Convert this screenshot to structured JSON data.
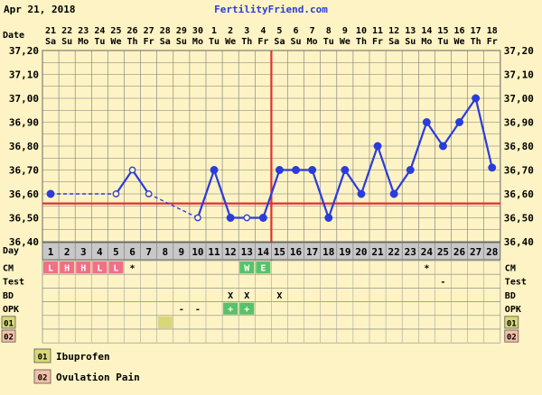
{
  "header": {
    "date": "Apr 21, 2018",
    "site": "FertilityFriend.com"
  },
  "labels": {
    "date_row": "Date",
    "day_row": "Day"
  },
  "chart_data": {
    "type": "line",
    "title": "",
    "y_unit": "temperature",
    "ylim": [
      36.4,
      37.2
    ],
    "ytick_step": 0.1,
    "y_ticks": [
      "36,40",
      "36,50",
      "36,60",
      "36,70",
      "36,80",
      "36,90",
      "37,00",
      "37,10",
      "37,20"
    ],
    "grid": true,
    "dates": [
      "21",
      "22",
      "23",
      "24",
      "25",
      "26",
      "27",
      "28",
      "29",
      "30",
      "1",
      "2",
      "3",
      "4",
      "5",
      "6",
      "7",
      "8",
      "9",
      "10",
      "11",
      "12",
      "13",
      "14",
      "15",
      "16",
      "17",
      "18"
    ],
    "weekdays": [
      "Sa",
      "Su",
      "Mo",
      "Tu",
      "We",
      "Th",
      "Fr",
      "Sa",
      "Su",
      "Mo",
      "Tu",
      "We",
      "Th",
      "Fr",
      "Sa",
      "Su",
      "Mo",
      "Tu",
      "We",
      "Th",
      "Fr",
      "Sa",
      "Su",
      "Mo",
      "Tu",
      "We",
      "Th",
      "Fr"
    ],
    "cycle_days": [
      "1",
      "2",
      "3",
      "4",
      "5",
      "6",
      "7",
      "8",
      "9",
      "10",
      "11",
      "12",
      "13",
      "14",
      "15",
      "16",
      "17",
      "18",
      "19",
      "20",
      "21",
      "22",
      "23",
      "24",
      "25",
      "26",
      "27",
      "28"
    ],
    "temps": [
      {
        "day": 1,
        "t": 36.6,
        "open": false
      },
      {
        "day": 5,
        "t": 36.6,
        "open": true
      },
      {
        "day": 6,
        "t": 36.7,
        "open": true
      },
      {
        "day": 7,
        "t": 36.6,
        "open": true
      },
      {
        "day": 10,
        "t": 36.5,
        "open": true
      },
      {
        "day": 11,
        "t": 36.7,
        "open": false
      },
      {
        "day": 12,
        "t": 36.5,
        "open": false
      },
      {
        "day": 13,
        "t": 36.5,
        "open": true
      },
      {
        "day": 14,
        "t": 36.5,
        "open": false
      },
      {
        "day": 15,
        "t": 36.7,
        "open": false
      },
      {
        "day": 16,
        "t": 36.7,
        "open": false
      },
      {
        "day": 17,
        "t": 36.7,
        "open": false
      },
      {
        "day": 18,
        "t": 36.5,
        "open": false
      },
      {
        "day": 19,
        "t": 36.7,
        "open": false
      },
      {
        "day": 20,
        "t": 36.6,
        "open": false
      },
      {
        "day": 21,
        "t": 36.8,
        "open": false
      },
      {
        "day": 22,
        "t": 36.6,
        "open": false
      },
      {
        "day": 23,
        "t": 36.7,
        "open": false
      },
      {
        "day": 24,
        "t": 36.9,
        "open": false
      },
      {
        "day": 25,
        "t": 36.8,
        "open": false
      },
      {
        "day": 26,
        "t": 36.9,
        "open": false
      },
      {
        "day": 27,
        "t": 37.0,
        "open": false
      },
      {
        "day": 28,
        "t": 36.71,
        "open": false
      }
    ],
    "dashed_segments": [
      [
        1,
        5
      ],
      [
        7,
        10
      ]
    ],
    "coverline": 36.56,
    "ovulation_day": 14,
    "colors": {
      "line": "#2a3cdc",
      "coverline": "#e03030",
      "grid": "#7a7a7a",
      "menses": "#f07088",
      "fertile": "#58c26a",
      "spotting_note": "#d8d878",
      "note2": "#f4c0a8",
      "background": "#fdf3c4",
      "header": "#c8c8c8"
    },
    "rows": {
      "cm": {
        "label": "CM",
        "cells": [
          {
            "day": 1,
            "text": "L",
            "color": "menses"
          },
          {
            "day": 2,
            "text": "H",
            "color": "menses"
          },
          {
            "day": 3,
            "text": "H",
            "color": "menses"
          },
          {
            "day": 4,
            "text": "L",
            "color": "menses"
          },
          {
            "day": 5,
            "text": "L",
            "color": "menses"
          },
          {
            "day": 6,
            "text": "*",
            "color": ""
          },
          {
            "day": 13,
            "text": "W",
            "color": "fertile"
          },
          {
            "day": 14,
            "text": "E",
            "color": "fertile"
          },
          {
            "day": 24,
            "text": "*",
            "color": ""
          }
        ]
      },
      "test": {
        "label": "Test",
        "cells": [
          {
            "day": 25,
            "text": "-",
            "color": ""
          }
        ]
      },
      "bd": {
        "label": "BD",
        "cells": [
          {
            "day": 12,
            "text": "X",
            "color": ""
          },
          {
            "day": 13,
            "text": "X",
            "color": ""
          },
          {
            "day": 15,
            "text": "X",
            "color": ""
          }
        ]
      },
      "opk": {
        "label": "OPK",
        "cells": [
          {
            "day": 9,
            "text": "-",
            "color": ""
          },
          {
            "day": 10,
            "text": "-",
            "color": ""
          },
          {
            "day": 12,
            "text": "+",
            "color": "fertile"
          },
          {
            "day": 13,
            "text": "+",
            "color": "fertile"
          }
        ]
      },
      "note1": {
        "label": "01",
        "cells": [
          {
            "day": 8,
            "text": "",
            "color": "spotting_note"
          }
        ]
      },
      "note2": {
        "label": "02",
        "cells": []
      }
    }
  },
  "legend": [
    {
      "code": "01",
      "label": "Ibuprofen",
      "color": "#d8d878"
    },
    {
      "code": "02",
      "label": "Ovulation Pain",
      "color": "#f4c0a8"
    }
  ]
}
